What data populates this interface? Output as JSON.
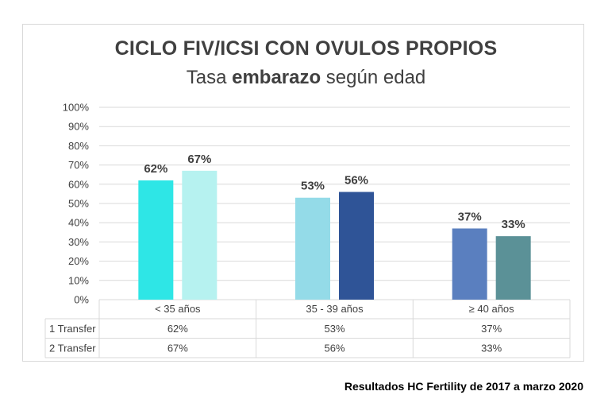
{
  "chart_data": {
    "type": "bar",
    "title": "CICLO FIV/ICSI CON OVULOS PROPIOS",
    "subtitle_pre": "Tasa ",
    "subtitle_bold": "embarazo",
    "subtitle_post": " según edad",
    "categories": [
      "< 35 años",
      "35 - 39 años",
      "≥ 40 años"
    ],
    "series": [
      {
        "name": "1 Transfer",
        "values": [
          62,
          53,
          37
        ],
        "labels": [
          "62%",
          "53%",
          "37%"
        ]
      },
      {
        "name": "2 Transfer",
        "values": [
          67,
          56,
          33
        ],
        "labels": [
          "67%",
          "56%",
          "33%"
        ]
      }
    ],
    "bar_colors": [
      [
        "#2ee6e6",
        "#b6f2f0"
      ],
      [
        "#94dbe8",
        "#2f5497"
      ],
      [
        "#5a7fbf",
        "#5b9197"
      ]
    ],
    "ylim": [
      0,
      100
    ],
    "yticks": [
      "0%",
      "10%",
      "20%",
      "30%",
      "40%",
      "50%",
      "60%",
      "70%",
      "80%",
      "90%",
      "100%"
    ],
    "grid": true,
    "data_table": true
  },
  "footer": "Resultados HC Fertility de 2017 a marzo 2020"
}
